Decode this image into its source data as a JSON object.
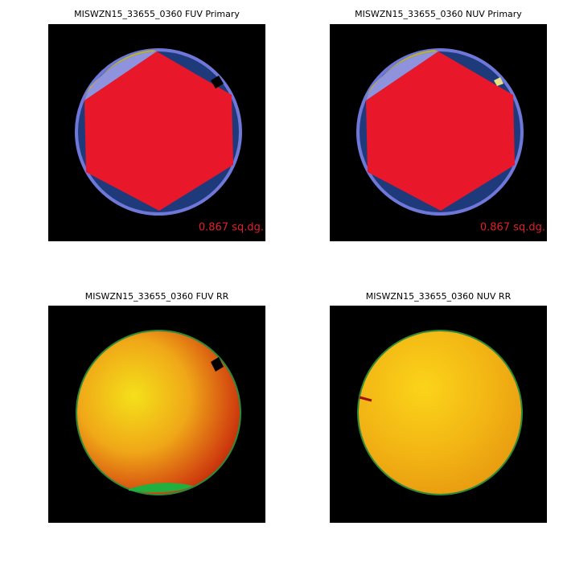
{
  "panels": [
    {
      "title": "MISWZN15_33655_0360 FUV Primary",
      "area_label": "0.867 sq.dg."
    },
    {
      "title": "MISWZN15_33655_0360 NUV Primary",
      "area_label": "0.867 sq.dg."
    },
    {
      "title": "MISWZN15_33655_0360 FUV RR"
    },
    {
      "title": "MISWZN15_33655_0360 NUV RR"
    }
  ]
}
